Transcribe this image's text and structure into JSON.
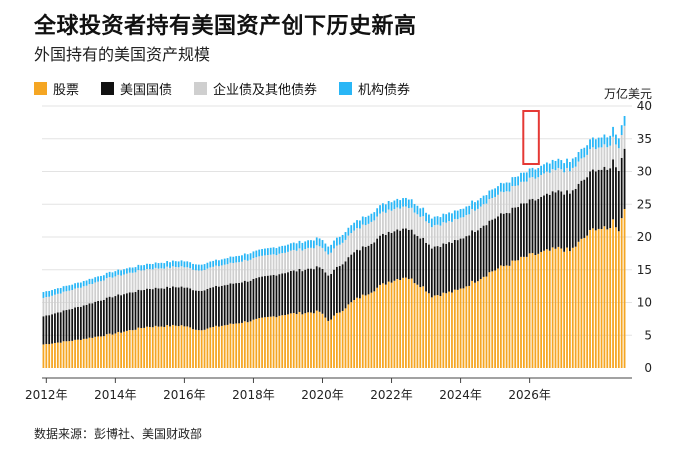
{
  "title": "全球投资者持有美国资产创下历史新高",
  "subtitle": "外国持有的美国资产规模",
  "source": "数据来源：彭博社、美国财政部",
  "legend": [
    {
      "label": "股票",
      "color": "#F5A623"
    },
    {
      "label": "美国国债",
      "color": "#111111"
    },
    {
      "label": "企业债及其他债券",
      "color": "#CFCFCF"
    },
    {
      "label": "机构债券",
      "color": "#29B6F6"
    }
  ],
  "chart_data": {
    "type": "bar",
    "stacked": true,
    "ylabel": "万亿美元",
    "ylim": [
      0,
      40
    ],
    "yticks": [
      0,
      5,
      10,
      15,
      20,
      25,
      30,
      35,
      40
    ],
    "xticks": [
      "2012年",
      "2014年",
      "2016年",
      "2018年",
      "2020年",
      "2022年",
      "2024年",
      "2026年"
    ],
    "x_start": "2011-12",
    "frequency": "monthly",
    "highlight": {
      "start": "2025-12",
      "end": "2026-03",
      "color": "#E53935"
    },
    "grid": true,
    "series": [
      {
        "name": "股票",
        "color": "#F5A623",
        "anchors": [
          [
            0,
            3.6
          ],
          [
            12,
            4.3
          ],
          [
            24,
            5.2
          ],
          [
            36,
            6.3
          ],
          [
            48,
            6.5
          ],
          [
            54,
            5.8
          ],
          [
            60,
            6.3
          ],
          [
            72,
            7.2
          ],
          [
            84,
            8.2
          ],
          [
            96,
            8.6
          ],
          [
            99,
            7.2
          ],
          [
            108,
            10.3
          ],
          [
            120,
            13.2
          ],
          [
            126,
            14.0
          ],
          [
            132,
            12.4
          ],
          [
            135,
            11.0
          ],
          [
            144,
            11.8
          ],
          [
            156,
            14.8
          ],
          [
            168,
            17.0
          ],
          [
            180,
            18.3
          ],
          [
            183,
            17.8
          ],
          [
            192,
            21.5
          ],
          [
            196,
            21.0
          ],
          [
            198,
            22.5
          ],
          [
            200,
            21.2
          ],
          [
            202,
            24.5
          ]
        ]
      },
      {
        "name": "美国国债",
        "color": "#111111",
        "anchors": [
          [
            0,
            4.3
          ],
          [
            12,
            5.0
          ],
          [
            24,
            5.7
          ],
          [
            36,
            5.8
          ],
          [
            48,
            5.9
          ],
          [
            60,
            6.1
          ],
          [
            72,
            6.2
          ],
          [
            84,
            6.4
          ],
          [
            96,
            6.8
          ],
          [
            108,
            7.3
          ],
          [
            120,
            7.6
          ],
          [
            132,
            7.4
          ],
          [
            144,
            7.6
          ],
          [
            156,
            7.9
          ],
          [
            168,
            8.2
          ],
          [
            180,
            8.7
          ],
          [
            192,
            9.0
          ],
          [
            196,
            9.1
          ],
          [
            200,
            9.2
          ],
          [
            202,
            9.2
          ]
        ]
      },
      {
        "name": "企业债及其他债券",
        "color": "#CFCFCF",
        "anchors": [
          [
            0,
            2.8
          ],
          [
            12,
            2.9
          ],
          [
            24,
            3.0
          ],
          [
            36,
            3.0
          ],
          [
            48,
            3.1
          ],
          [
            60,
            3.1
          ],
          [
            72,
            3.2
          ],
          [
            84,
            3.1
          ],
          [
            96,
            3.2
          ],
          [
            108,
            3.3
          ],
          [
            120,
            3.4
          ],
          [
            132,
            3.3
          ],
          [
            144,
            3.2
          ],
          [
            156,
            3.3
          ],
          [
            168,
            3.3
          ],
          [
            180,
            3.4
          ],
          [
            192,
            3.4
          ],
          [
            202,
            3.5
          ]
        ]
      },
      {
        "name": "机构债券",
        "color": "#29B6F6",
        "anchors": [
          [
            0,
            0.9
          ],
          [
            12,
            0.8
          ],
          [
            24,
            0.8
          ],
          [
            36,
            0.8
          ],
          [
            48,
            0.9
          ],
          [
            60,
            0.9
          ],
          [
            72,
            1.0
          ],
          [
            84,
            1.1
          ],
          [
            96,
            1.2
          ],
          [
            108,
            1.2
          ],
          [
            120,
            1.3
          ],
          [
            132,
            1.3
          ],
          [
            144,
            1.3
          ],
          [
            156,
            1.3
          ],
          [
            168,
            1.4
          ],
          [
            180,
            1.4
          ],
          [
            192,
            1.5
          ],
          [
            202,
            1.5
          ]
        ]
      }
    ],
    "months": 203
  }
}
